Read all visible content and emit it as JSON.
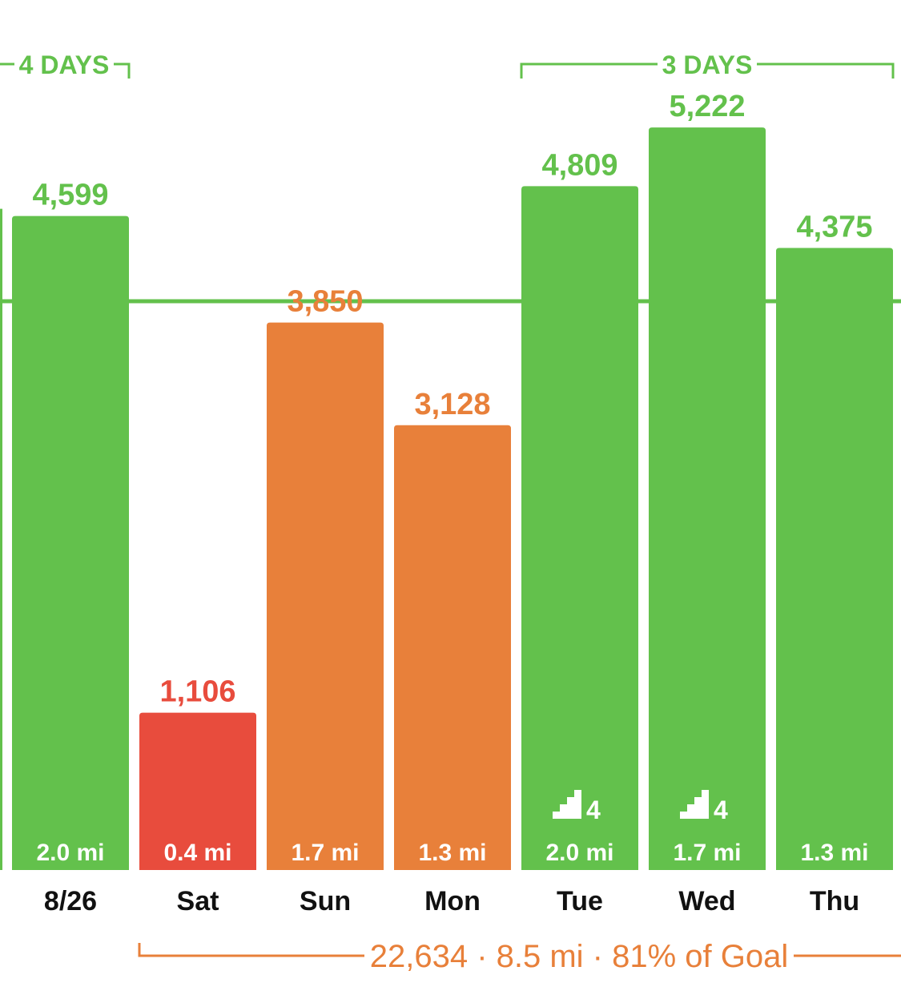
{
  "colors": {
    "goal_met": "#63c14c",
    "near_goal": "#e8803a",
    "far_below": "#e84c3d",
    "label_dark": "#111111",
    "inner_text": "#ffffff"
  },
  "chart_data": {
    "type": "bar",
    "categories": [
      "8/26",
      "Sat",
      "Sun",
      "Mon",
      "Tue",
      "Wed",
      "Thu"
    ],
    "values": [
      4599,
      1106,
      3850,
      3128,
      4809,
      5222,
      4375
    ],
    "value_labels": [
      "4,599",
      "1,106",
      "3,850",
      "3,128",
      "4,809",
      "5,222",
      "4,375"
    ],
    "distance_labels": [
      "2.0 mi",
      "0.4 mi",
      "1.7 mi",
      "1.3 mi",
      "2.0 mi",
      "1.7 mi",
      "1.3 mi"
    ],
    "status": [
      "goal_met",
      "far_below",
      "near_goal",
      "near_goal",
      "goal_met",
      "goal_met",
      "goal_met"
    ],
    "flights": [
      null,
      null,
      null,
      null,
      4,
      4,
      null
    ],
    "stair_icon": "stairs-icon",
    "goal_line": 4000,
    "ylim": [
      0,
      5800
    ],
    "grid": false,
    "legend": "none",
    "streaks": [
      {
        "label": "4 DAYS",
        "from": 0,
        "to": 0,
        "open_left": true,
        "open_right": false
      },
      {
        "label": "3 DAYS",
        "from": 4,
        "to": 6,
        "open_left": false,
        "open_right": false
      }
    ],
    "summary": {
      "text": "22,634 · 8.5 mi · 81% of Goal",
      "from": 1,
      "to": 6,
      "open_right": true
    }
  }
}
